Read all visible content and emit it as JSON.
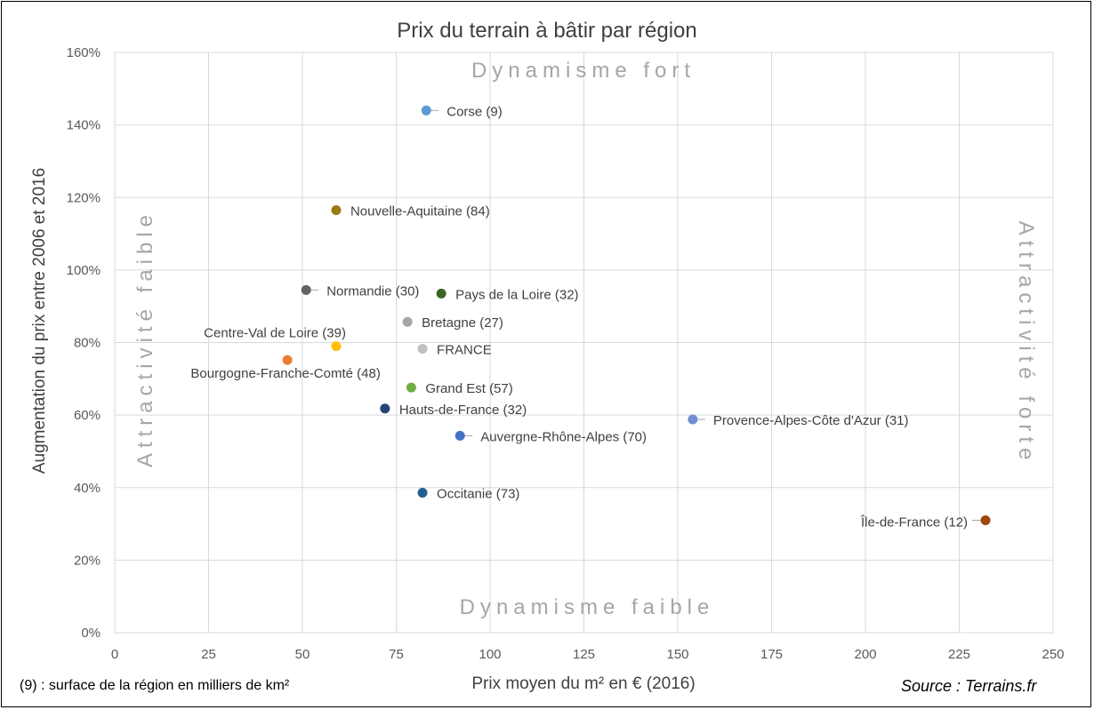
{
  "chart_data": {
    "type": "scatter",
    "title": "Prix du terrain à bâtir par région",
    "xlabel": "Prix moyen du m² en € (2016)",
    "ylabel": "Augmentation du prix entre 2006 et 2016",
    "xlim": [
      0,
      250
    ],
    "ylim": [
      0,
      1.6
    ],
    "x_ticks": [
      0,
      25,
      50,
      75,
      100,
      125,
      150,
      175,
      200,
      225,
      250
    ],
    "y_ticks": [
      0,
      0.2,
      0.4,
      0.6,
      0.8,
      1.0,
      1.2,
      1.4,
      1.6
    ],
    "x_tick_labels": [
      "0",
      "25",
      "50",
      "75",
      "100",
      "125",
      "150",
      "175",
      "200",
      "225",
      "250"
    ],
    "y_tick_labels": [
      "0%",
      "20%",
      "40%",
      "60%",
      "80%",
      "100%",
      "120%",
      "140%",
      "160%"
    ],
    "grid": true,
    "quadrant_labels": {
      "top": "Dynamisme fort",
      "bottom": "Dynamisme faible",
      "left": "Attractivité faible",
      "right": "Attractivité forte"
    },
    "points": [
      {
        "label": "Corse (9)",
        "x": 83,
        "y": 1.44,
        "color": "#5b9bd5",
        "label_side": "right",
        "leader": true
      },
      {
        "label": "Nouvelle-Aquitaine (84)",
        "x": 59,
        "y": 1.165,
        "color": "#9c7a0e",
        "label_side": "right",
        "leader": false
      },
      {
        "label": "Normandie (30)",
        "x": 51,
        "y": 0.945,
        "color": "#636363",
        "label_side": "right",
        "leader": true
      },
      {
        "label": "Pays de la Loire (32)",
        "x": 87,
        "y": 0.935,
        "color": "#3a6424",
        "label_side": "right",
        "leader": false
      },
      {
        "label": "Bretagne (27)",
        "x": 78,
        "y": 0.857,
        "color": "#a5a5a5",
        "label_side": "right",
        "leader": false
      },
      {
        "label": "Centre-Val de Loire (39)",
        "x": 59,
        "y": 0.79,
        "color": "#ffc000",
        "label_side": "above-left",
        "leader": false
      },
      {
        "label": "FRANCE",
        "x": 82,
        "y": 0.783,
        "color": "#c0c0c0",
        "label_side": "right",
        "leader": false
      },
      {
        "label": "Bourgogne-Franche-Comté (48)",
        "x": 46,
        "y": 0.752,
        "color": "#ed7d31",
        "label_side": "below",
        "leader": false
      },
      {
        "label": "Grand Est (57)",
        "x": 79,
        "y": 0.676,
        "color": "#70ad47",
        "label_side": "right",
        "leader": false
      },
      {
        "label": "Hauts-de-France (32)",
        "x": 72,
        "y": 0.618,
        "color": "#264478",
        "label_side": "right",
        "leader": false
      },
      {
        "label": "Provence-Alpes-Côte d'Azur (31)",
        "x": 154,
        "y": 0.588,
        "color": "#6f8fd0",
        "label_side": "right",
        "leader": true
      },
      {
        "label": "Auvergne-Rhône-Alpes (70)",
        "x": 92,
        "y": 0.543,
        "color": "#4472c4",
        "label_side": "right",
        "leader": true
      },
      {
        "label": "Occitanie (73)",
        "x": 82,
        "y": 0.386,
        "color": "#255e91",
        "label_side": "right",
        "leader": false
      },
      {
        "label": "Île-de-France (12)",
        "x": 232,
        "y": 0.31,
        "color": "#9e480e",
        "label_side": "left",
        "leader": true
      }
    ]
  },
  "footnote": "(9) : surface de la région en milliers de km²",
  "source": "Source : Terrains.fr"
}
